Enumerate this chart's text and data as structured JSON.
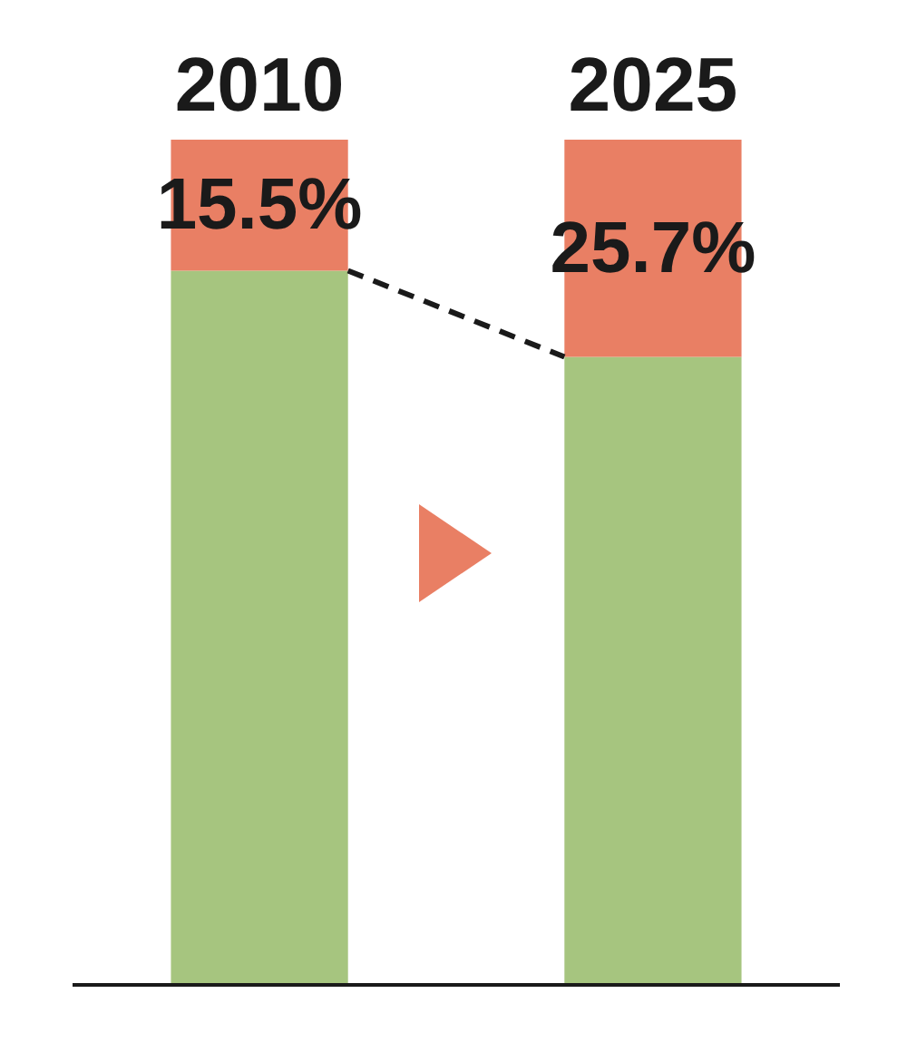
{
  "chart_data": {
    "type": "bar",
    "stacked": true,
    "categories": [
      "2010",
      "2025"
    ],
    "ylim": [
      0,
      100
    ],
    "tick_labels": "x",
    "series": [
      {
        "color": "#a6c57f",
        "values": [
          84.5,
          74.3
        ]
      },
      {
        "color": "#e97f64",
        "values": [
          15.5,
          25.7
        ],
        "value_labels": [
          "15.5%",
          "25.7%"
        ]
      }
    ]
  }
}
